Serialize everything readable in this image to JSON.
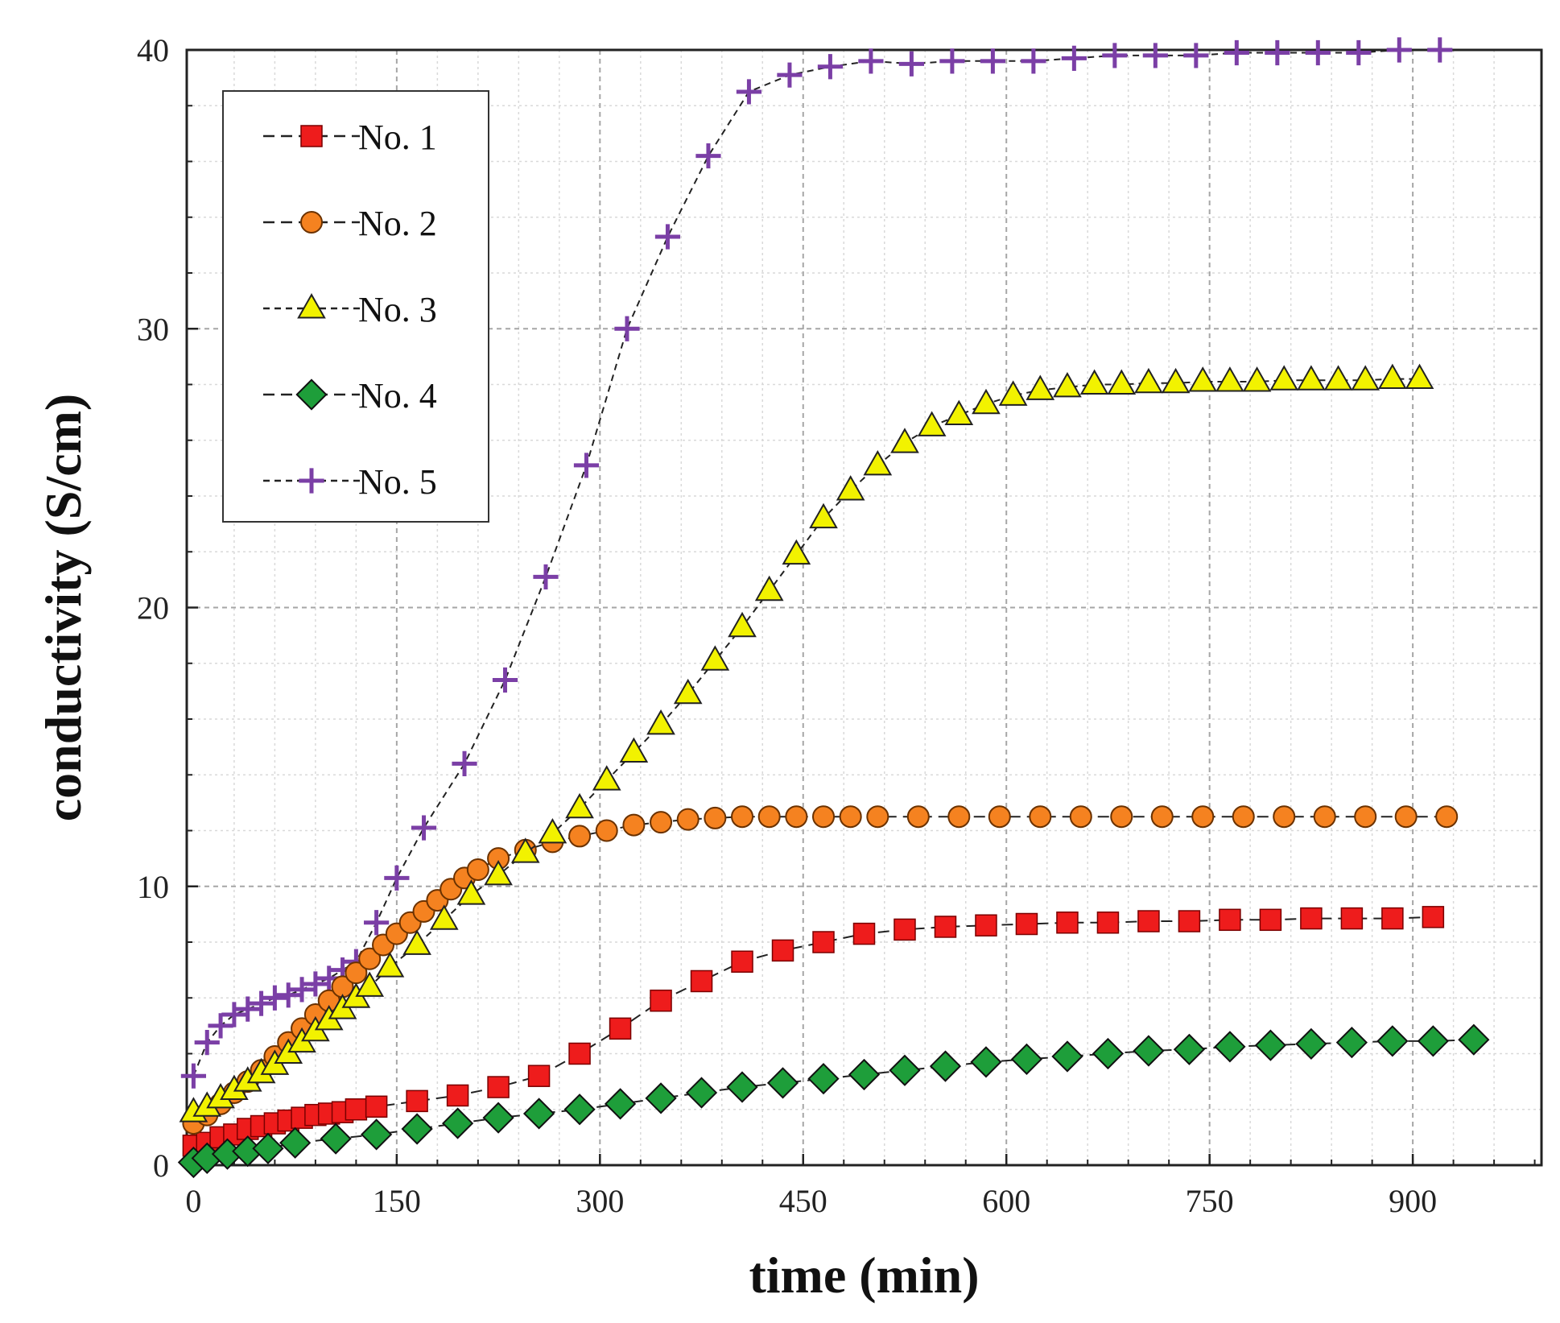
{
  "chart_data": {
    "type": "line",
    "title": "",
    "xlabel": "time (min)",
    "ylabel": "conductivity (S/cm)",
    "xlim": [
      -5,
      995
    ],
    "ylim": [
      0,
      40
    ],
    "xticks": [
      0,
      150,
      300,
      450,
      600,
      750,
      900
    ],
    "yticks": [
      0,
      10,
      20,
      30,
      40
    ],
    "xtick_labels": [
      "0",
      "150",
      "300",
      "450",
      "600",
      "750",
      "900"
    ],
    "ytick_labels": [
      "0",
      "10",
      "20",
      "30",
      "40"
    ],
    "grid": true,
    "legend_position": "top-left",
    "series": [
      {
        "name": "No. 1",
        "marker": "square",
        "color": "#ee1c1c",
        "line_dash": "long-dash",
        "x": [
          0,
          10,
          20,
          30,
          40,
          50,
          60,
          70,
          80,
          90,
          100,
          110,
          120,
          135,
          165,
          195,
          225,
          255,
          285,
          315,
          345,
          375,
          405,
          435,
          465,
          495,
          525,
          555,
          585,
          615,
          645,
          675,
          705,
          735,
          765,
          795,
          825,
          855,
          885,
          915
        ],
        "y": [
          0.7,
          0.8,
          1.0,
          1.1,
          1.3,
          1.4,
          1.5,
          1.6,
          1.7,
          1.8,
          1.85,
          1.9,
          2.0,
          2.1,
          2.3,
          2.5,
          2.8,
          3.2,
          4.0,
          4.9,
          5.9,
          6.6,
          7.3,
          7.7,
          8.0,
          8.3,
          8.45,
          8.55,
          8.6,
          8.65,
          8.7,
          8.7,
          8.75,
          8.75,
          8.8,
          8.8,
          8.85,
          8.85,
          8.85,
          8.9
        ]
      },
      {
        "name": "No. 2",
        "marker": "circle",
        "color": "#f58220",
        "line_dash": "long-dash",
        "x": [
          0,
          10,
          20,
          30,
          40,
          50,
          60,
          70,
          80,
          90,
          100,
          110,
          120,
          130,
          140,
          150,
          160,
          170,
          180,
          190,
          200,
          210,
          225,
          245,
          265,
          285,
          305,
          325,
          345,
          365,
          385,
          405,
          425,
          445,
          465,
          485,
          505,
          535,
          565,
          595,
          625,
          655,
          685,
          715,
          745,
          775,
          805,
          835,
          865,
          895,
          925
        ],
        "y": [
          1.5,
          1.8,
          2.2,
          2.6,
          3.0,
          3.4,
          3.9,
          4.4,
          4.9,
          5.4,
          5.9,
          6.4,
          6.9,
          7.4,
          7.9,
          8.3,
          8.7,
          9.1,
          9.5,
          9.9,
          10.3,
          10.6,
          11.0,
          11.3,
          11.6,
          11.8,
          12.0,
          12.2,
          12.3,
          12.4,
          12.45,
          12.5,
          12.5,
          12.5,
          12.5,
          12.5,
          12.5,
          12.5,
          12.5,
          12.5,
          12.5,
          12.5,
          12.5,
          12.5,
          12.5,
          12.5,
          12.5,
          12.5,
          12.5,
          12.5,
          12.5
        ]
      },
      {
        "name": "No. 3",
        "marker": "triangle",
        "color": "#f2f200",
        "line_dash": "short-dash",
        "x": [
          0,
          10,
          20,
          30,
          40,
          50,
          60,
          70,
          80,
          90,
          100,
          110,
          120,
          130,
          145,
          165,
          185,
          205,
          225,
          245,
          265,
          285,
          305,
          325,
          345,
          365,
          385,
          405,
          425,
          445,
          465,
          485,
          505,
          525,
          545,
          565,
          585,
          605,
          625,
          645,
          665,
          685,
          705,
          725,
          745,
          765,
          785,
          805,
          825,
          845,
          865,
          885,
          905
        ],
        "y": [
          1.9,
          2.1,
          2.4,
          2.7,
          3.0,
          3.3,
          3.6,
          4.0,
          4.4,
          4.8,
          5.2,
          5.6,
          6.0,
          6.4,
          7.1,
          7.9,
          8.8,
          9.7,
          10.4,
          11.2,
          11.9,
          12.8,
          13.8,
          14.8,
          15.8,
          16.9,
          18.1,
          19.3,
          20.6,
          21.9,
          23.2,
          24.2,
          25.1,
          25.9,
          26.5,
          26.9,
          27.3,
          27.6,
          27.8,
          27.9,
          28.0,
          28.0,
          28.05,
          28.05,
          28.1,
          28.1,
          28.1,
          28.15,
          28.15,
          28.15,
          28.15,
          28.2,
          28.2
        ]
      },
      {
        "name": "No. 4",
        "marker": "diamond",
        "color": "#1e9e3a",
        "line_dash": "long-dash",
        "x": [
          0,
          10,
          25,
          40,
          55,
          75,
          105,
          135,
          165,
          195,
          225,
          255,
          285,
          315,
          345,
          375,
          405,
          435,
          465,
          495,
          525,
          555,
          585,
          615,
          645,
          675,
          705,
          735,
          765,
          795,
          825,
          855,
          885,
          915,
          945
        ],
        "y": [
          0.1,
          0.25,
          0.4,
          0.5,
          0.6,
          0.8,
          0.95,
          1.1,
          1.3,
          1.5,
          1.7,
          1.85,
          2.0,
          2.2,
          2.4,
          2.6,
          2.8,
          2.95,
          3.1,
          3.25,
          3.4,
          3.55,
          3.7,
          3.8,
          3.9,
          4.0,
          4.1,
          4.15,
          4.25,
          4.3,
          4.35,
          4.4,
          4.45,
          4.45,
          4.5
        ]
      },
      {
        "name": "No. 5",
        "marker": "plus",
        "color": "#7b3fa6",
        "line_dash": "short-dash",
        "x": [
          0,
          10,
          20,
          30,
          40,
          50,
          60,
          70,
          80,
          90,
          100,
          110,
          120,
          135,
          150,
          170,
          200,
          230,
          260,
          290,
          320,
          350,
          380,
          410,
          440,
          470,
          500,
          530,
          560,
          590,
          620,
          650,
          680,
          710,
          740,
          770,
          800,
          830,
          860,
          890,
          920
        ],
        "y": [
          3.2,
          4.4,
          5.0,
          5.4,
          5.6,
          5.8,
          6.0,
          6.1,
          6.3,
          6.5,
          6.7,
          7.0,
          7.3,
          8.7,
          10.3,
          12.1,
          14.4,
          17.4,
          21.1,
          25.1,
          30.0,
          33.3,
          36.2,
          38.5,
          39.1,
          39.4,
          39.6,
          39.5,
          39.6,
          39.6,
          39.6,
          39.7,
          39.8,
          39.8,
          39.8,
          39.9,
          39.9,
          39.9,
          39.9,
          40.0,
          40.0
        ]
      }
    ]
  }
}
